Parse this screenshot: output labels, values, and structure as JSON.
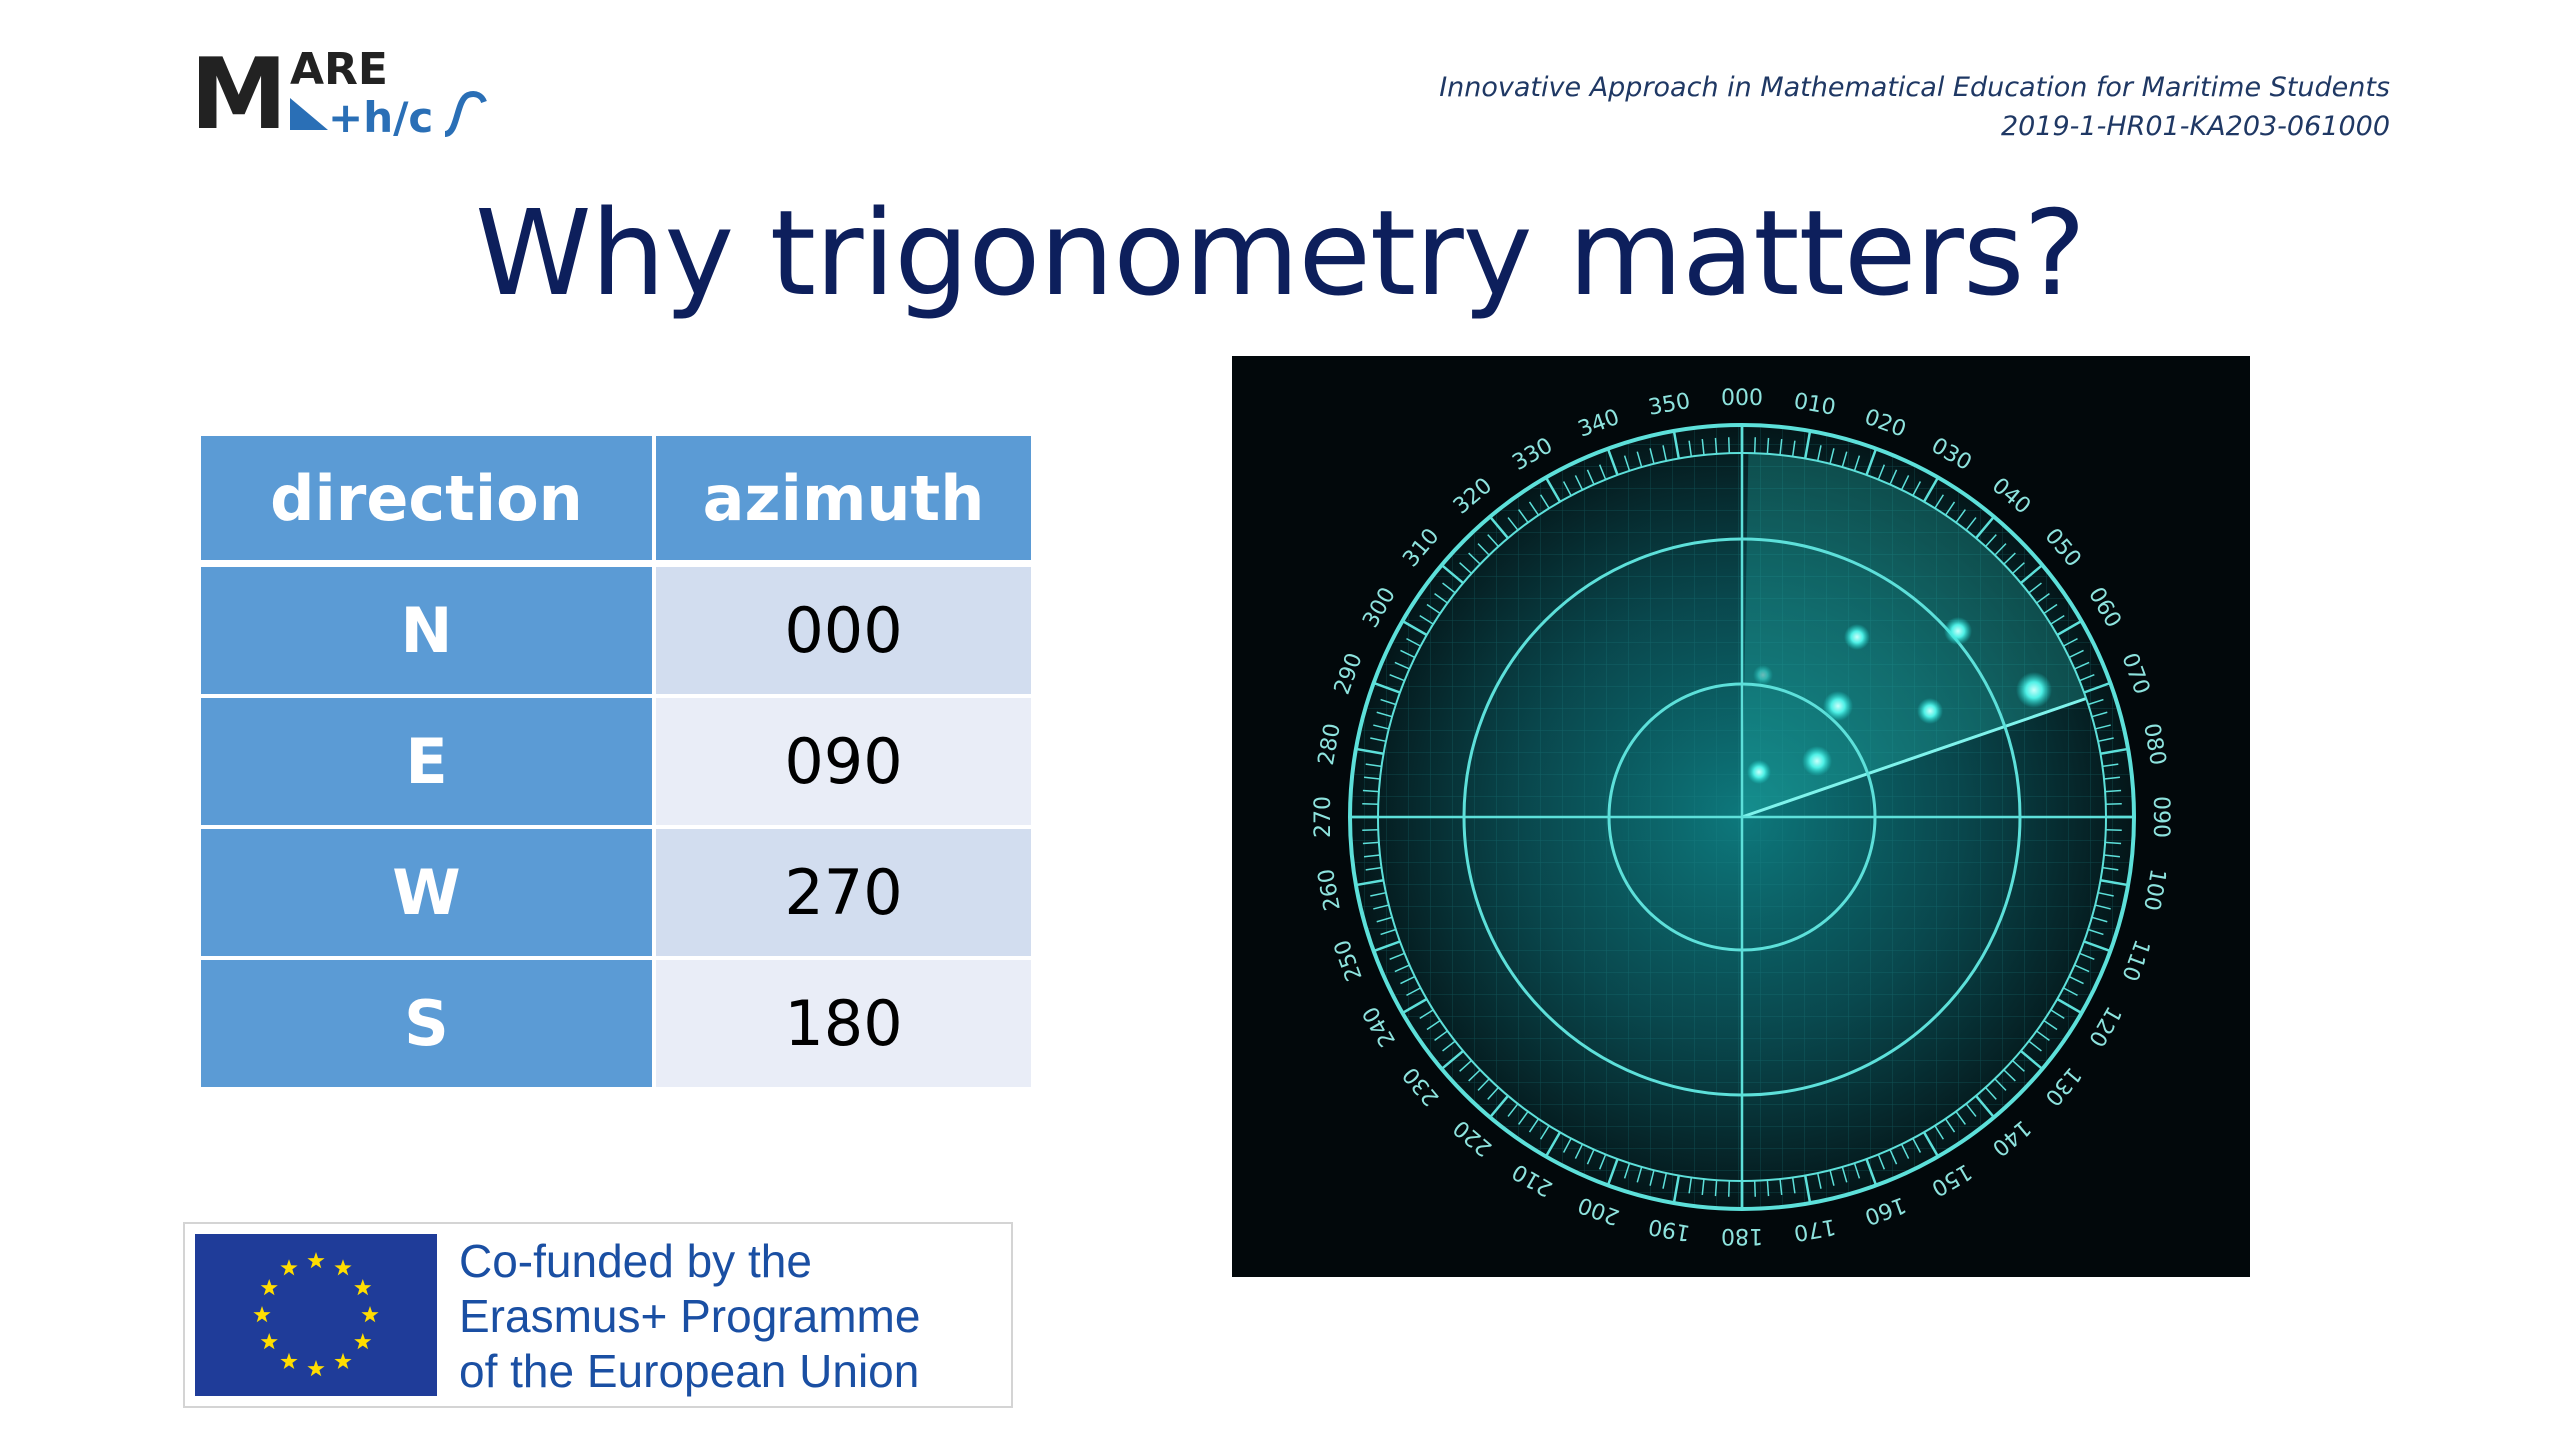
{
  "logo": {
    "text_top": "ARE",
    "text_big": "M",
    "text_bottom": "+h/c"
  },
  "header": {
    "project_title": "Innovative Approach in Mathematical Education for Maritime Students",
    "project_code": "2019-1-HR01-KA203-061000"
  },
  "slide": {
    "title": "Why trigonometry matters?"
  },
  "table": {
    "headers": [
      "direction",
      "azimuth"
    ],
    "rows": [
      {
        "direction": "N",
        "azimuth": "000"
      },
      {
        "direction": "E",
        "azimuth": "090"
      },
      {
        "direction": "W",
        "azimuth": "270"
      },
      {
        "direction": "S",
        "azimuth": "180"
      }
    ]
  },
  "radar": {
    "bearing_labels": [
      "000",
      "010",
      "020",
      "030",
      "040",
      "050",
      "060",
      "070",
      "080",
      "090",
      "100",
      "110",
      "120",
      "130",
      "140",
      "150",
      "160",
      "170",
      "180",
      "190",
      "200",
      "210",
      "220",
      "230",
      "240",
      "250",
      "260",
      "270",
      "280",
      "290",
      "300",
      "310",
      "320",
      "330",
      "340",
      "350"
    ],
    "sweep_bearing": 71,
    "colors": {
      "ring": "#4fd6d0",
      "glow": "#0b6f72",
      "blip": "#6ff3ee"
    }
  },
  "eu": {
    "line1": "Co-funded by the",
    "line2": "Erasmus+ Programme",
    "line3": "of the European Union"
  }
}
